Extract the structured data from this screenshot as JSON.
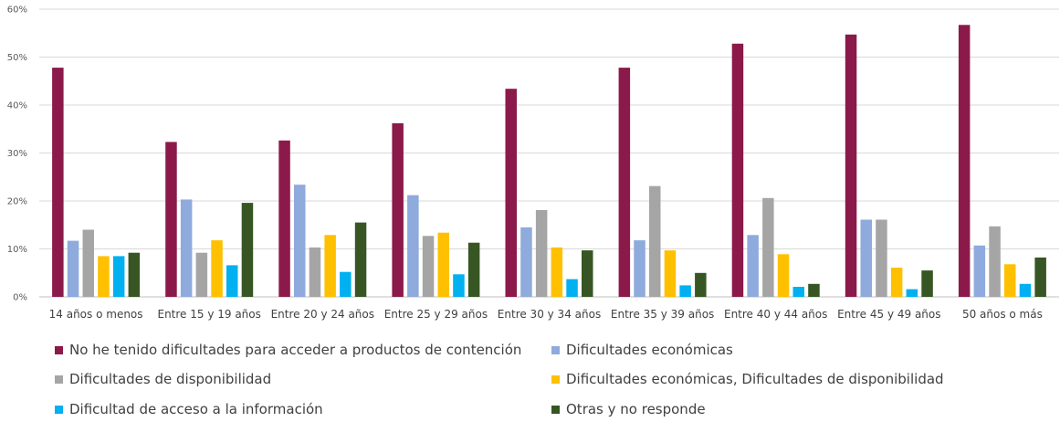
{
  "chart_data": {
    "type": "bar",
    "categories": [
      "14 años o menos",
      "Entre 15 y 19 años",
      "Entre 20 y 24 años",
      "Entre 25 y 29 años",
      "Entre 30 y 34 años",
      "Entre 35 y 39 años",
      "Entre 40 y 44 años",
      "Entre 45 y 49 años",
      "50 años o más"
    ],
    "yticks": [
      "0%",
      "10%",
      "20%",
      "30%",
      "40%",
      "50%",
      "60%"
    ],
    "ylim": [
      0,
      60
    ],
    "grid": true,
    "legend_position": "bottom",
    "series": [
      {
        "name": "No he tenido dificultades para acceder a productos de contención",
        "color": "#8B1A4A",
        "values": [
          47.8,
          32.3,
          32.6,
          36.2,
          43.4,
          47.8,
          52.8,
          54.7,
          56.7
        ]
      },
      {
        "name": "Dificultades económicas",
        "color": "#8FAADC",
        "values": [
          11.7,
          20.3,
          23.4,
          21.2,
          14.5,
          11.8,
          12.9,
          16.1,
          10.7
        ]
      },
      {
        "name": "Dificultades de disponibilidad",
        "color": "#A5A5A5",
        "values": [
          14.0,
          9.2,
          10.3,
          12.7,
          18.1,
          23.1,
          20.6,
          16.1,
          14.7
        ]
      },
      {
        "name": "Dificultades económicas, Dificultades de disponibilidad",
        "color": "#FFC000",
        "values": [
          8.5,
          11.8,
          12.9,
          13.4,
          10.3,
          9.7,
          8.9,
          6.1,
          6.8
        ]
      },
      {
        "name": "Dificultad de acceso a la información",
        "color": "#00B0F0",
        "values": [
          8.5,
          6.6,
          5.2,
          4.7,
          3.7,
          2.4,
          2.1,
          1.6,
          2.7
        ]
      },
      {
        "name": "Otras y no responde",
        "color": "#375623",
        "values": [
          9.2,
          19.6,
          15.5,
          11.3,
          9.7,
          5.0,
          2.7,
          5.5,
          8.2
        ]
      }
    ]
  }
}
